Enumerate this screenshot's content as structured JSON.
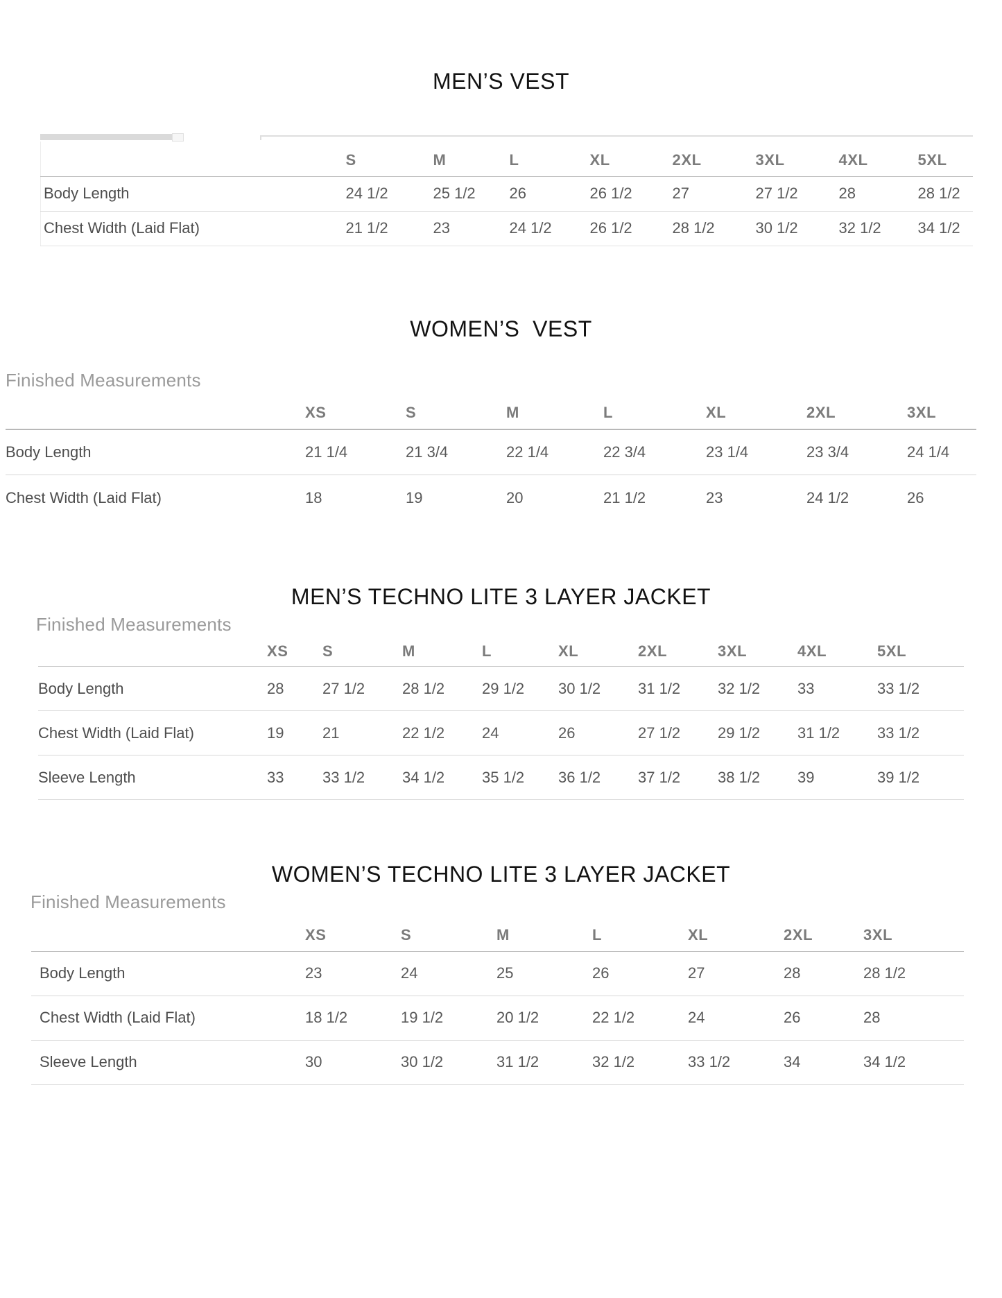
{
  "colors": {
    "page_background": "#ffffff",
    "title_text": "#121212",
    "finished_measurements_text": "#9a9a9a",
    "size_header_text": "#7b7b7b",
    "cell_text": "#585858",
    "divider_line": "#d8d8d8",
    "scrollbar_thumb": "#dadada"
  },
  "sections": [
    {
      "id": "mens-vest",
      "title": "MEN’S VEST",
      "finished_measurements_label": null,
      "sizes": [
        "S",
        "M",
        "L",
        "XL",
        "2XL",
        "3XL",
        "4XL",
        "5XL"
      ],
      "rows": [
        {
          "label": "Body Length",
          "values": [
            "24 1/2",
            "25 1/2",
            "26",
            "26 1/2",
            "27",
            "27 1/2",
            "28",
            "28 1/2"
          ]
        },
        {
          "label": "Chest Width (Laid Flat)",
          "values": [
            "21 1/2",
            "23",
            "24 1/2",
            "26 1/2",
            "28 1/2",
            "30 1/2",
            "32 1/2",
            "34 1/2"
          ]
        }
      ]
    },
    {
      "id": "womens-vest",
      "title": "WOMEN’S  VEST",
      "finished_measurements_label": "Finished Measurements",
      "sizes": [
        "XS",
        "S",
        "M",
        "L",
        "XL",
        "2XL",
        "3XL"
      ],
      "rows": [
        {
          "label": "Body Length",
          "values": [
            "21 1/4",
            "21 3/4",
            "22 1/4",
            "22 3/4",
            "23 1/4",
            "23 3/4",
            "24 1/4"
          ]
        },
        {
          "label": "Chest Width (Laid Flat)",
          "values": [
            "18",
            "19",
            "20",
            "21 1/2",
            "23",
            "24 1/2",
            "26"
          ]
        }
      ]
    },
    {
      "id": "mens-techno-lite-3-layer-jacket",
      "title": "MEN’S TECHNO LITE 3 LAYER JACKET",
      "finished_measurements_label": "Finished Measurements",
      "sizes": [
        "XS",
        "S",
        "M",
        "L",
        "XL",
        "2XL",
        "3XL",
        "4XL",
        "5XL"
      ],
      "rows": [
        {
          "label": "Body Length",
          "values": [
            "28",
            "27 1/2",
            "28 1/2",
            "29 1/2",
            "30 1/2",
            "31 1/2",
            "32 1/2",
            "33",
            "33 1/2"
          ]
        },
        {
          "label": "Chest Width (Laid Flat)",
          "values": [
            "19",
            "21",
            "22 1/2",
            "24",
            "26",
            "27 1/2",
            "29 1/2",
            "31 1/2",
            "33 1/2"
          ]
        },
        {
          "label": "Sleeve Length",
          "values": [
            "33",
            "33 1/2",
            "34 1/2",
            "35 1/2",
            "36 1/2",
            "37 1/2",
            "38 1/2",
            "39",
            "39 1/2"
          ]
        }
      ]
    },
    {
      "id": "womens-techno-lite-3-layer-jacket",
      "title": "WOMEN’S TECHNO LITE 3 LAYER JACKET",
      "finished_measurements_label": "Finished Measurements",
      "sizes": [
        "XS",
        "S",
        "M",
        "L",
        "XL",
        "2XL",
        "3XL"
      ],
      "rows": [
        {
          "label": "Body Length",
          "values": [
            "23",
            "24",
            "25",
            "26",
            "27",
            "28",
            "28 1/2"
          ]
        },
        {
          "label": "Chest Width (Laid Flat)",
          "values": [
            "18 1/2",
            "19 1/2",
            "20 1/2",
            "22 1/2",
            "24",
            "26",
            "28"
          ]
        },
        {
          "label": "Sleeve Length",
          "values": [
            "30",
            "30 1/2",
            "31 1/2",
            "32 1/2",
            "33 1/2",
            "34",
            "34 1/2"
          ]
        }
      ]
    }
  ]
}
